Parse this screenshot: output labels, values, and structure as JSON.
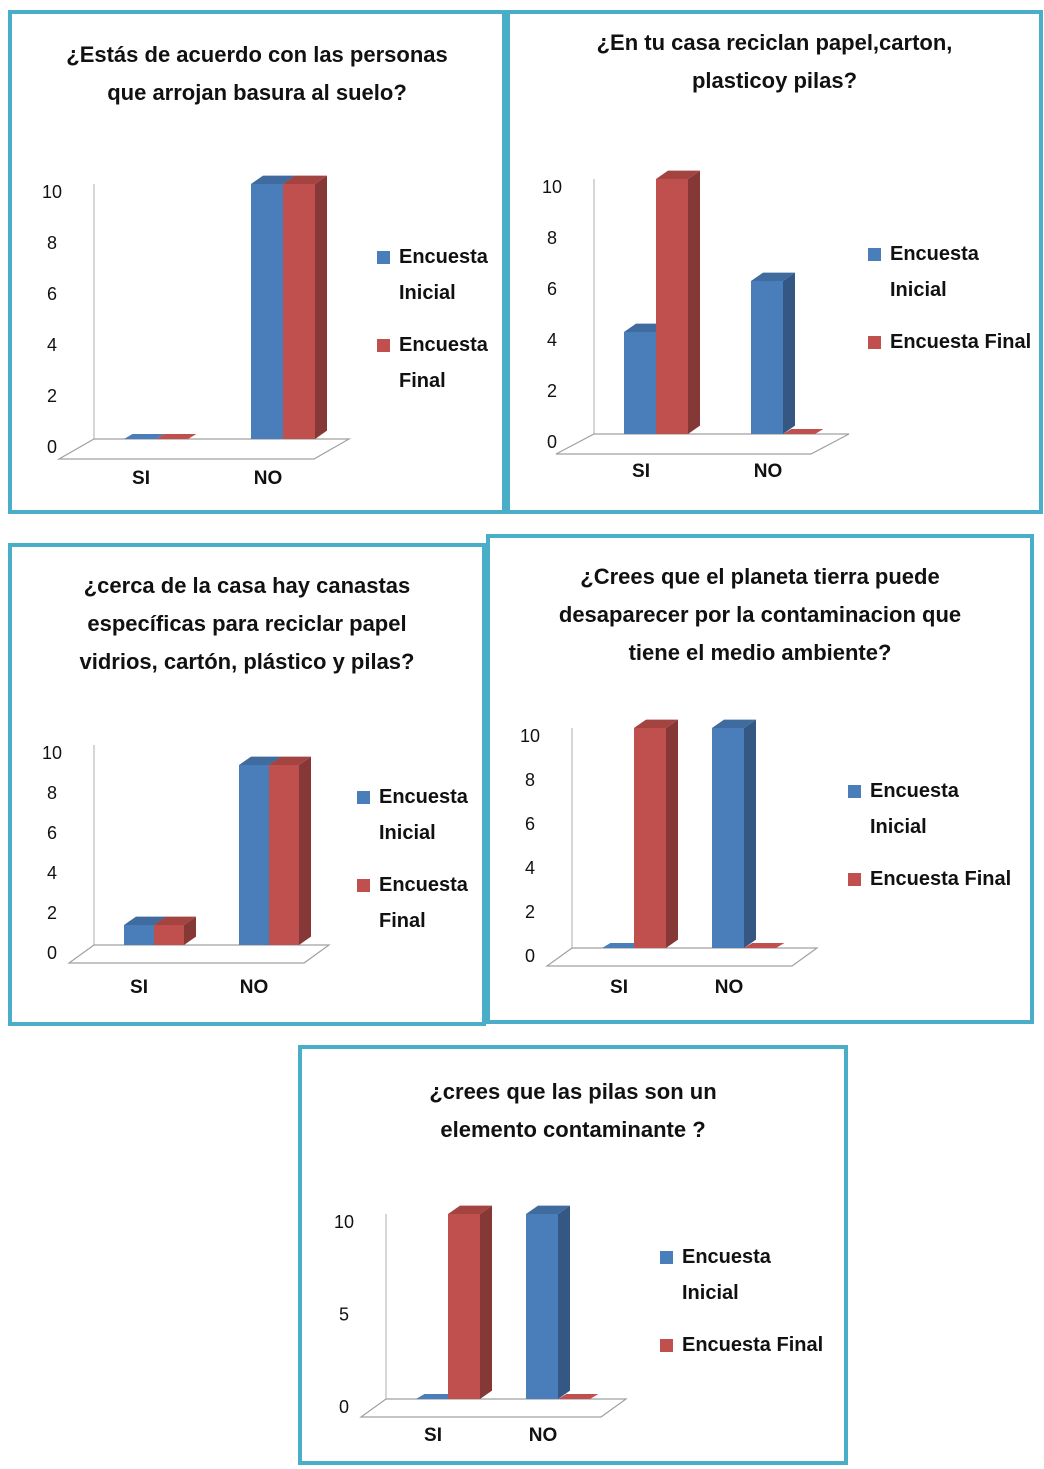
{
  "colors": {
    "initial": "#4a7ebb",
    "final": "#c0504d",
    "border": "#4aaec8"
  },
  "chart_data": [
    {
      "type": "bar",
      "title": "¿Estás de acuerdo con las personas\nque arrojan basura al suelo?",
      "categories": [
        "SI",
        "NO"
      ],
      "yticks": [
        "0",
        "2",
        "4",
        "6",
        "8",
        "10"
      ],
      "ylim": [
        0,
        10
      ],
      "series": [
        {
          "name": "Encuesta\nInicial",
          "values": [
            0,
            10
          ]
        },
        {
          "name": "Encuesta\nFinal",
          "values": [
            0,
            10
          ]
        }
      ],
      "legend": "right"
    },
    {
      "type": "bar",
      "title": "¿En tu casa reciclan papel,carton,\nplasticoy pilas?",
      "categories": [
        "SI",
        "NO"
      ],
      "yticks": [
        "0",
        "2",
        "4",
        "6",
        "8",
        "10"
      ],
      "ylim": [
        0,
        10
      ],
      "series": [
        {
          "name": "Encuesta\nInicial",
          "values": [
            4,
            6
          ]
        },
        {
          "name": "Encuesta Final",
          "values": [
            10,
            0
          ]
        }
      ],
      "legend": "right"
    },
    {
      "type": "bar",
      "title": "¿cerca de la casa hay canastas\nespecíficas para reciclar papel\nvidrios, cartón, plástico y pilas?",
      "categories": [
        "SI",
        "NO"
      ],
      "yticks": [
        "0",
        "2",
        "4",
        "6",
        "8",
        "10"
      ],
      "ylim": [
        0,
        10
      ],
      "series": [
        {
          "name": "Encuesta\nInicial",
          "values": [
            1,
            9
          ]
        },
        {
          "name": "Encuesta\nFinal",
          "values": [
            1,
            9
          ]
        }
      ],
      "legend": "right"
    },
    {
      "type": "bar",
      "title": "¿Crees que el planeta tierra puede\ndesaparecer por la contaminacion que\ntiene el medio ambiente?",
      "categories": [
        "SI",
        "NO"
      ],
      "yticks": [
        "0",
        "2",
        "4",
        "6",
        "8",
        "10"
      ],
      "ylim": [
        0,
        10
      ],
      "series": [
        {
          "name": "Encuesta\nInicial",
          "values": [
            0,
            10
          ]
        },
        {
          "name": "Encuesta Final",
          "values": [
            10,
            0
          ]
        }
      ],
      "legend": "right"
    },
    {
      "type": "bar",
      "title": "¿crees que las pilas son un\nelemento contaminante ?",
      "categories": [
        "SI",
        "NO"
      ],
      "yticks": [
        "0",
        "5",
        "10"
      ],
      "ylim": [
        0,
        10
      ],
      "series": [
        {
          "name": "Encuesta\nInicial",
          "values": [
            0,
            10
          ]
        },
        {
          "name": "Encuesta Final",
          "values": [
            10,
            0
          ]
        }
      ],
      "legend": "right"
    }
  ]
}
